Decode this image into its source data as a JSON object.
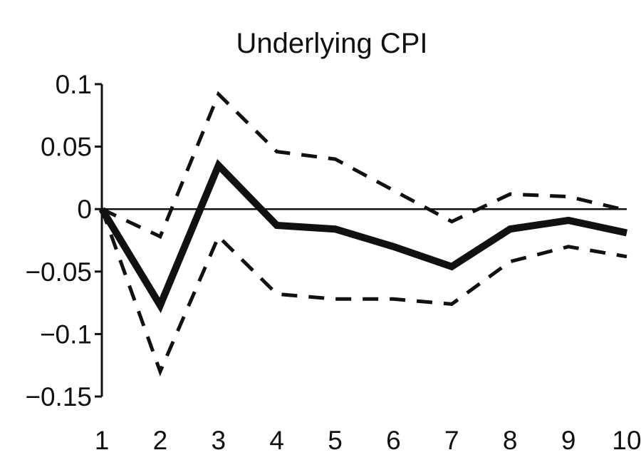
{
  "chart_data": {
    "type": "line",
    "title": "Underlying CPI",
    "xlabel": "",
    "ylabel": "",
    "x": [
      1,
      2,
      3,
      4,
      5,
      6,
      7,
      8,
      9,
      10
    ],
    "xlim": [
      1,
      10
    ],
    "ylim": [
      -0.15,
      0.1
    ],
    "x_tick_labels": [
      "1",
      "2",
      "3",
      "4",
      "5",
      "6",
      "7",
      "8",
      "9",
      "10"
    ],
    "y_ticks": [
      0.1,
      0.05,
      0,
      -0.05,
      -0.1,
      -0.15
    ],
    "y_tick_labels": [
      "0.1",
      "0.05",
      "0",
      "−0.05",
      "−0.1",
      "−0.15"
    ],
    "grid": false,
    "legend": "none",
    "zero_line": true,
    "series": [
      {
        "role": "response",
        "style": "solid-thick",
        "color": "#111111",
        "values": [
          0,
          -0.077,
          0.035,
          -0.013,
          -0.016,
          -0.03,
          -0.046,
          -0.016,
          -0.009,
          -0.019
        ]
      },
      {
        "role": "upper-band",
        "style": "dashed",
        "color": "#111111",
        "values": [
          0,
          -0.022,
          0.092,
          0.046,
          0.04,
          0.015,
          -0.01,
          0.012,
          0.01,
          -0.001
        ]
      },
      {
        "role": "lower-band",
        "style": "dashed",
        "color": "#111111",
        "values": [
          0,
          -0.13,
          -0.022,
          -0.068,
          -0.072,
          -0.072,
          -0.076,
          -0.042,
          -0.03,
          -0.038
        ]
      }
    ]
  }
}
